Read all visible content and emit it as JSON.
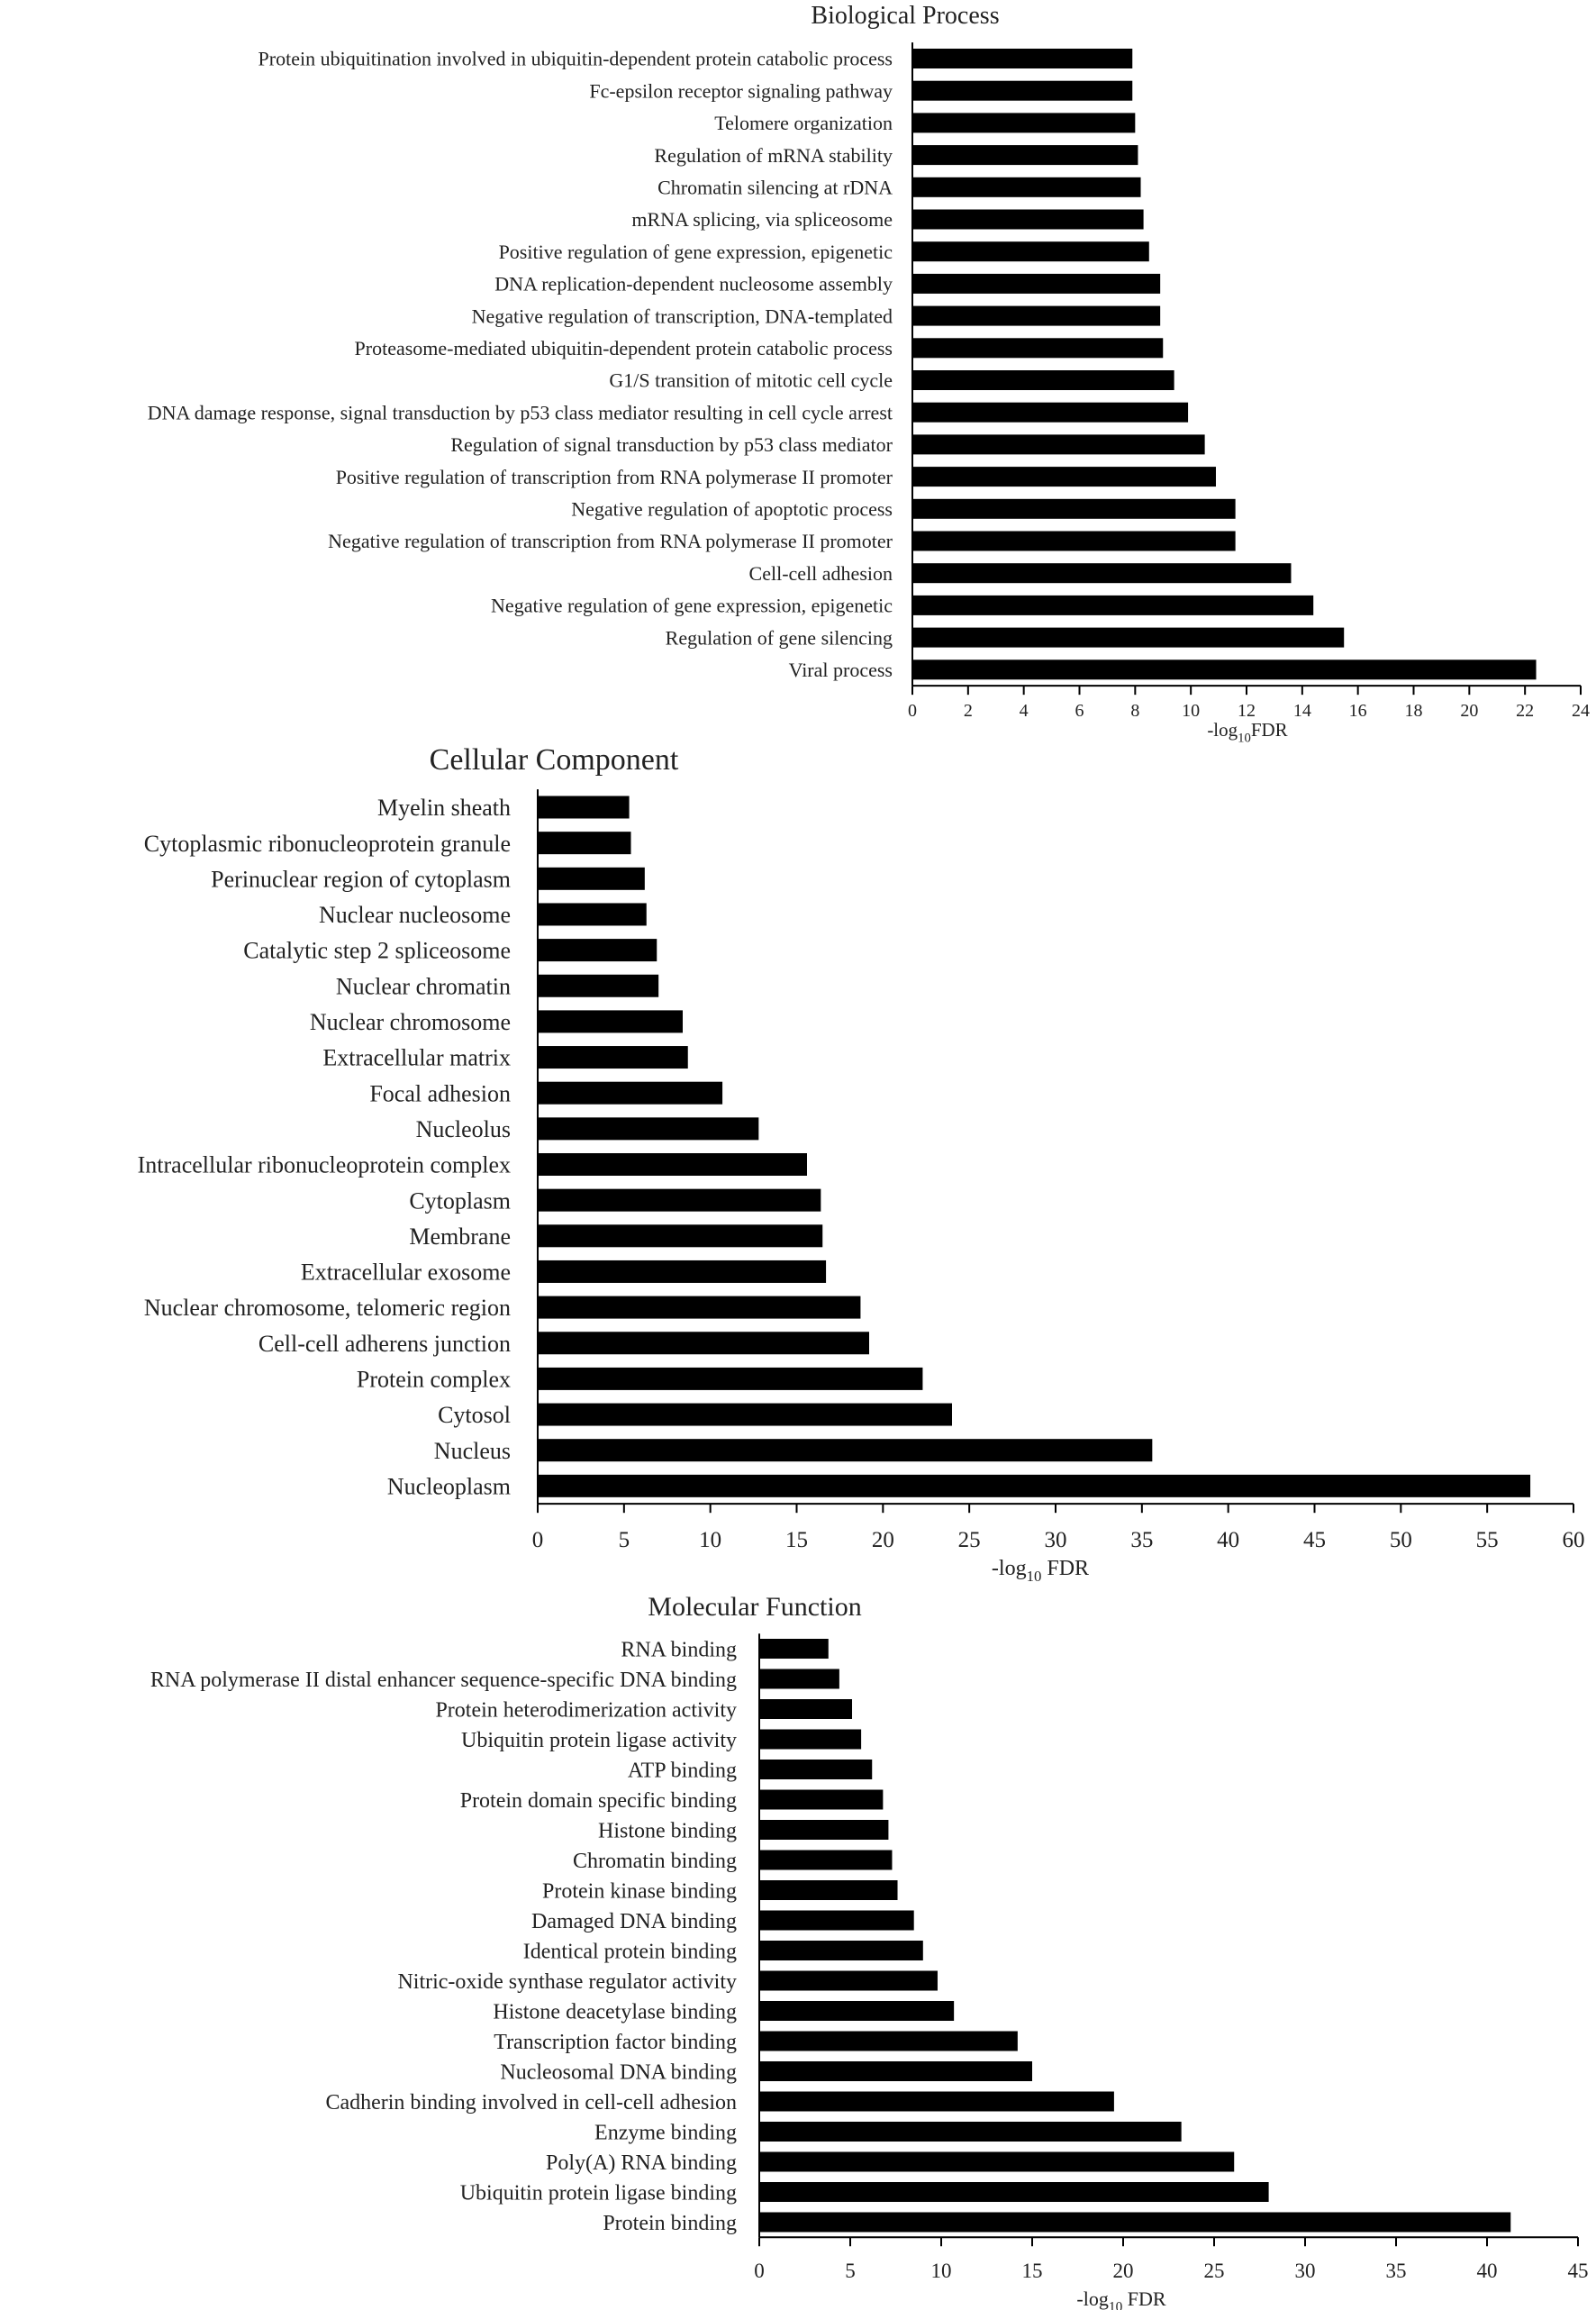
{
  "chart_data": [
    {
      "type": "bar",
      "orientation": "horizontal",
      "title": "Biological Process",
      "xlabel_parts": [
        "-log",
        "10",
        "FDR"
      ],
      "xlim": [
        0,
        24
      ],
      "xticks": [
        0,
        2,
        4,
        6,
        8,
        10,
        12,
        14,
        16,
        18,
        20,
        22,
        24
      ],
      "categories": [
        "Protein ubiquitination involved in ubiquitin-dependent protein catabolic process",
        "Fc-epsilon receptor signaling pathway",
        "Telomere organization",
        "Regulation of mRNA stability",
        "Chromatin silencing at rDNA",
        "mRNA splicing, via spliceosome",
        "Positive regulation of gene expression, epigenetic",
        "DNA replication-dependent nucleosome assembly",
        "Negative regulation of transcription, DNA-templated",
        "Proteasome-mediated ubiquitin-dependent protein catabolic process",
        "G1/S transition of mitotic cell cycle",
        "DNA damage response, signal transduction by p53 class mediator resulting in cell cycle arrest",
        "Regulation of signal transduction by p53 class mediator",
        "Positive regulation of transcription from RNA polymerase II promoter",
        "Negative regulation of apoptotic process",
        "Negative regulation of transcription from RNA polymerase II promoter",
        "Cell-cell adhesion",
        "Negative regulation of gene expression, epigenetic",
        "Regulation of gene silencing",
        "Viral process"
      ],
      "values": [
        7.9,
        7.9,
        8.0,
        8.1,
        8.2,
        8.3,
        8.5,
        8.9,
        8.9,
        9.0,
        9.4,
        9.9,
        10.5,
        10.9,
        11.6,
        11.6,
        13.6,
        14.4,
        15.5,
        22.4
      ]
    },
    {
      "type": "bar",
      "orientation": "horizontal",
      "title": "Cellular Component",
      "xlabel_parts": [
        "-log",
        "10",
        " FDR"
      ],
      "xlim": [
        0,
        60
      ],
      "xticks": [
        0,
        5,
        10,
        15,
        20,
        25,
        30,
        35,
        40,
        45,
        50,
        55,
        60
      ],
      "categories": [
        "Myelin sheath",
        "Cytoplasmic ribonucleoprotein granule",
        "Perinuclear region of cytoplasm",
        "Nuclear nucleosome",
        "Catalytic step 2 spliceosome",
        "Nuclear chromatin",
        "Nuclear chromosome",
        "Extracellular matrix",
        "Focal adhesion",
        "Nucleolus",
        "Intracellular ribonucleoprotein complex",
        "Cytoplasm",
        "Membrane",
        "Extracellular exosome",
        "Nuclear chromosome, telomeric region",
        "Cell-cell adherens junction",
        "Protein complex",
        "Cytosol",
        "Nucleus",
        "Nucleoplasm"
      ],
      "values": [
        5.3,
        5.4,
        6.2,
        6.3,
        6.9,
        7.0,
        8.4,
        8.7,
        10.7,
        12.8,
        15.6,
        16.4,
        16.5,
        16.7,
        18.7,
        19.2,
        22.3,
        24.0,
        35.6,
        57.5
      ]
    },
    {
      "type": "bar",
      "orientation": "horizontal",
      "title": "Molecular Function",
      "xlabel_parts": [
        "-log",
        "10",
        " FDR"
      ],
      "xlim": [
        0,
        45
      ],
      "xticks": [
        0,
        5,
        10,
        15,
        20,
        25,
        30,
        35,
        40,
        45
      ],
      "categories": [
        "RNA binding",
        "RNA polymerase II distal enhancer sequence-specific DNA binding",
        "Protein heterodimerization activity",
        "Ubiquitin protein ligase activity",
        "ATP binding",
        "Protein domain specific binding",
        "Histone binding",
        "Chromatin binding",
        "Protein kinase binding",
        "Damaged DNA binding",
        "Identical protein binding",
        "Nitric-oxide synthase regulator activity",
        "Histone deacetylase binding",
        "Transcription factor binding",
        "Nucleosomal DNA binding",
        "Cadherin binding involved in cell-cell adhesion",
        "Enzyme binding",
        "Poly(A) RNA binding",
        "Ubiquitin protein ligase binding",
        "Protein binding"
      ],
      "values": [
        3.8,
        4.4,
        5.1,
        5.6,
        6.2,
        6.8,
        7.1,
        7.3,
        7.6,
        8.5,
        9.0,
        9.8,
        10.7,
        14.2,
        15.0,
        19.5,
        23.2,
        26.1,
        28.0,
        41.3
      ]
    }
  ]
}
